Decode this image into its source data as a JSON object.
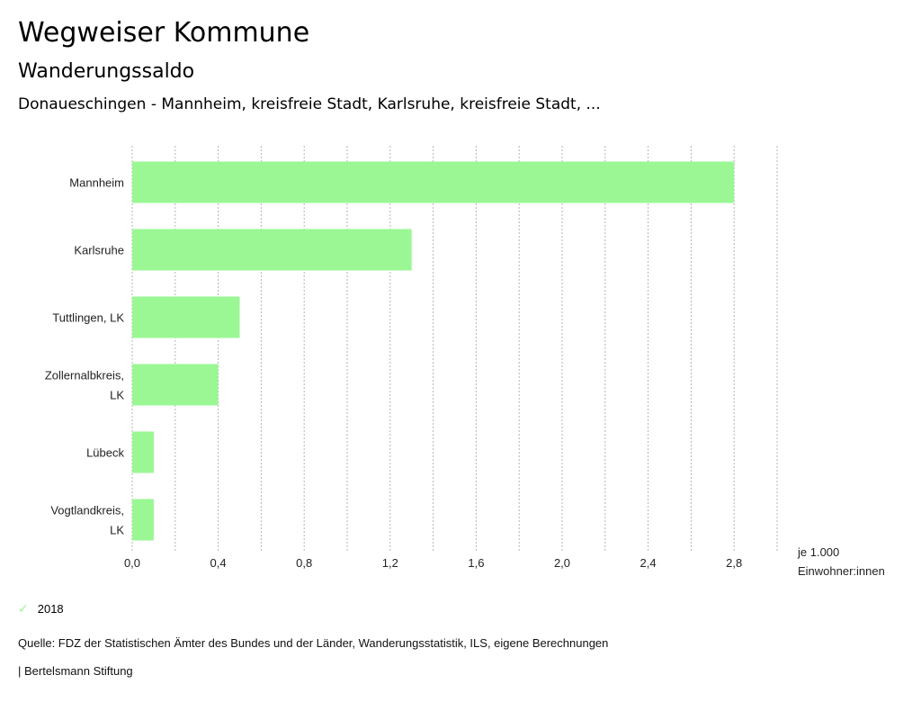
{
  "header": {
    "title": "Wegweiser Kommune",
    "subtitle": "Wanderungssaldo",
    "description": "Donaueschingen - Mannheim, kreisfreie Stadt, Karlsruhe, kreisfreie Stadt, ..."
  },
  "chart_data": {
    "type": "bar",
    "orientation": "horizontal",
    "categories": [
      [
        "Mannheim"
      ],
      [
        "Karlsruhe"
      ],
      [
        "Tuttlingen, LK"
      ],
      [
        "Zollernalbkreis,",
        "LK"
      ],
      [
        "Lübeck"
      ],
      [
        "Vogtlandkreis,",
        "LK"
      ]
    ],
    "series": [
      {
        "name": "2018",
        "values": [
          2.8,
          1.3,
          0.5,
          0.4,
          0.1,
          0.1
        ],
        "color": "#9af794"
      }
    ],
    "xlim": [
      0,
      3.0
    ],
    "grid_values": [
      0,
      0.2,
      0.4,
      0.6,
      0.8,
      1.0,
      1.2,
      1.4,
      1.6,
      1.8,
      2.0,
      2.2,
      2.4,
      2.6,
      2.8,
      3.0
    ],
    "tick_values": [
      0,
      0.4,
      0.8,
      1.2,
      1.6,
      2.0,
      2.4,
      2.8
    ],
    "tick_labels": [
      "0,0",
      "0,4",
      "0,8",
      "1,2",
      "1,6",
      "2,0",
      "2,4",
      "2,8"
    ],
    "unit_label": [
      "je 1.000",
      "Einwohner:innen"
    ],
    "grid": true,
    "legend_position": "bottom-left"
  },
  "legend": {
    "label": "2018",
    "icon": "check-icon"
  },
  "footer": {
    "source": "Quelle: FDZ der Statistischen Ämter des Bundes und der Länder, Wanderungsstatistik, ILS, eigene Berechnungen",
    "credit": "| Bertelsmann Stiftung"
  }
}
